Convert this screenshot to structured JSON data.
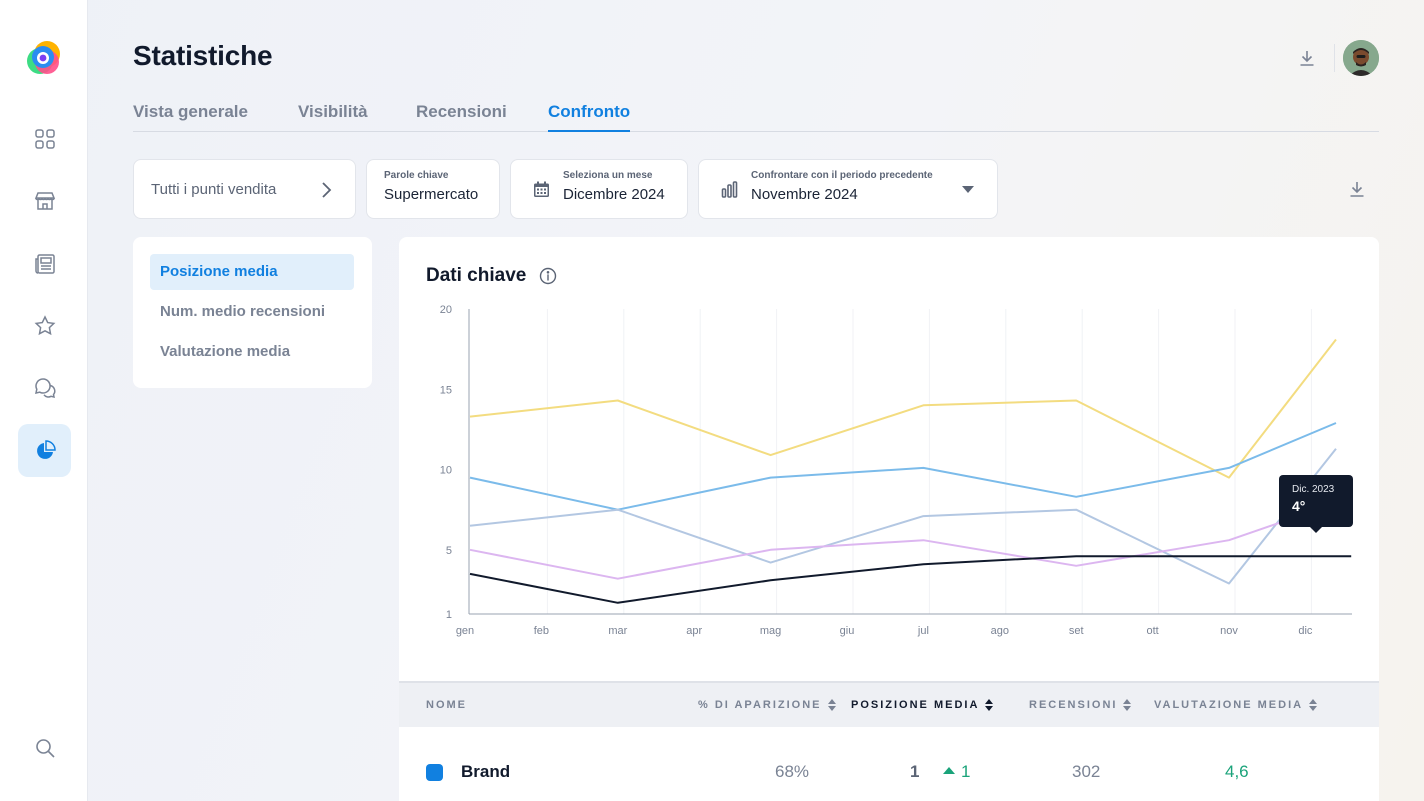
{
  "header": {
    "title": "Statistiche",
    "tabs": [
      {
        "label": "Vista generale"
      },
      {
        "label": "Visibilità"
      },
      {
        "label": "Recensioni"
      },
      {
        "label": "Confronto"
      }
    ],
    "active_tab": "Confronto"
  },
  "sidebar": {
    "items": [
      {
        "icon": "grid-icon"
      },
      {
        "icon": "store-icon"
      },
      {
        "icon": "newspaper-icon"
      },
      {
        "icon": "star-icon"
      },
      {
        "icon": "chat-icon"
      },
      {
        "icon": "pie-chart-icon",
        "active": true
      },
      {
        "icon": "search-icon"
      }
    ]
  },
  "filters": {
    "locations": "Tutti i punti vendita",
    "keywords_label": "Parole chiave",
    "keywords_value": "Supermercato",
    "month_label": "Seleziona un mese",
    "month_value": "Dicembre 2024",
    "compare_label": "Confrontare con il periodo precedente",
    "compare_value": "Novembre 2024"
  },
  "metrics_menu": [
    {
      "label": "Posizione media",
      "active": true
    },
    {
      "label": "Num. medio recensioni"
    },
    {
      "label": "Valutazione media"
    }
  ],
  "card": {
    "title": "Dati chiave",
    "tooltip": {
      "label": "Dic. 2023",
      "value": "4°"
    }
  },
  "chart_data": {
    "type": "line",
    "title": "Dati chiave",
    "xlabel": "",
    "ylabel": "",
    "x": [
      "gen",
      "feb",
      "mar",
      "apr",
      "mag",
      "giu",
      "jul",
      "ago",
      "set",
      "ott",
      "nov",
      "dic"
    ],
    "y_ticks": [
      20,
      15,
      10,
      5,
      1
    ],
    "ylim": [
      1,
      20
    ],
    "grid": "vertical",
    "series": [
      {
        "color": "#f3dc80",
        "points": [
          [
            0,
            13.3
          ],
          [
            2,
            14.3
          ],
          [
            4,
            10.9
          ],
          [
            6,
            14.0
          ],
          [
            8,
            14.3
          ],
          [
            10,
            9.5
          ],
          [
            11.4,
            18.1
          ]
        ]
      },
      {
        "color": "#7bbbea",
        "points": [
          [
            0,
            9.5
          ],
          [
            2,
            7.5
          ],
          [
            4,
            9.5
          ],
          [
            6,
            10.1
          ],
          [
            8,
            8.3
          ],
          [
            10,
            10.1
          ],
          [
            11.4,
            12.9
          ]
        ]
      },
      {
        "color": "#b3c7e2",
        "points": [
          [
            0,
            6.5
          ],
          [
            2,
            7.5
          ],
          [
            4,
            4.2
          ],
          [
            6,
            7.1
          ],
          [
            8,
            7.5
          ],
          [
            10,
            2.9
          ],
          [
            11.4,
            11.3
          ]
        ]
      },
      {
        "color": "#dcb6f0",
        "points": [
          [
            0,
            5.0
          ],
          [
            2,
            3.2
          ],
          [
            4,
            5.0
          ],
          [
            6,
            5.6
          ],
          [
            8,
            4.0
          ],
          [
            10,
            5.6
          ],
          [
            11.4,
            7.9
          ]
        ]
      },
      {
        "color": "#111a2c",
        "points": [
          [
            0,
            3.5
          ],
          [
            2,
            1.7
          ],
          [
            4,
            3.1
          ],
          [
            6,
            4.1
          ],
          [
            8,
            4.6
          ],
          [
            10,
            4.6
          ],
          [
            11.6,
            4.6
          ]
        ]
      }
    ]
  },
  "table": {
    "headers": [
      {
        "label": "NOME"
      },
      {
        "label": "% DI APARIZIONE"
      },
      {
        "label": "POSIZIONE MEDIA",
        "active": true
      },
      {
        "label": "RECENSIONI"
      },
      {
        "label": "VALUTAZIONE MEDIA"
      }
    ],
    "rows": [
      {
        "name": "Brand",
        "color": "#1180e0",
        "appearance": "68%",
        "position": "1",
        "delta": "1",
        "reviews": "302",
        "rating": "4,6"
      }
    ]
  }
}
